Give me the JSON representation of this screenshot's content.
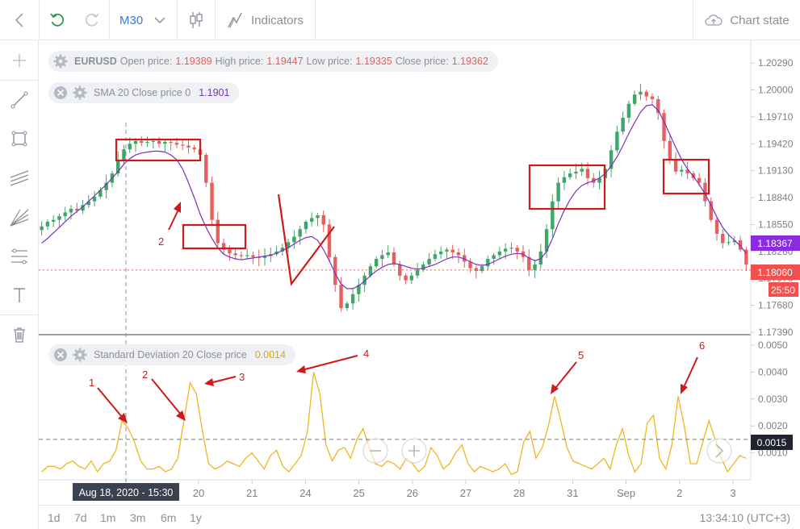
{
  "toolbar": {
    "timeframe": "M30",
    "indicators_label": "Indicators",
    "chart_state_label": "Chart state"
  },
  "legend_main": {
    "symbol": "EURUSD",
    "open_label": "Open price:",
    "open_value": "1.19389",
    "high_label": "High price:",
    "high_value": "1.19447",
    "low_label": "Low price:",
    "low_value": "1.19335",
    "close_label": "Close price:",
    "close_value": "1.19362"
  },
  "legend_sma": {
    "label": "SMA 20 Close price 0",
    "value": "1.1901"
  },
  "legend_sd": {
    "label": "Standard Deviation 20 Close price",
    "value": "0.0014"
  },
  "colors": {
    "candle_up": "#3fa66a",
    "candle_down": "#e3605f",
    "sma": "#7b2fbe",
    "stddev": "#f2b51f",
    "annotation": "#d0191b",
    "axis_text": "#7a7f88",
    "price_badge_sma": "#8a2be2",
    "price_badge_close": "#f05050"
  },
  "chart_data": [
    {
      "type": "candlestick",
      "series": [
        {
          "name": "EURUSD",
          "values": [
            1.1853,
            1.1858,
            1.186,
            1.1864,
            1.1868,
            1.1872,
            1.187,
            1.1876,
            1.188,
            1.1885,
            1.1892,
            1.19,
            1.191,
            1.1925,
            1.1936,
            1.1942,
            1.1945,
            1.1943,
            1.1944,
            1.1945,
            1.1942,
            1.1944,
            1.1943,
            1.1941,
            1.194,
            1.1938,
            1.1936,
            1.193,
            1.19,
            1.186,
            1.1835,
            1.1828,
            1.1824,
            1.1822,
            1.1821,
            1.1822,
            1.182,
            1.1819,
            1.1821,
            1.1823,
            1.1826,
            1.183,
            1.1836,
            1.1842,
            1.185,
            1.1858,
            1.1862,
            1.1865,
            1.1855,
            1.182,
            1.179,
            1.1765,
            1.177,
            1.178,
            1.179,
            1.18,
            1.181,
            1.1818,
            1.1822,
            1.1825,
            1.1812,
            1.18,
            1.1795,
            1.18,
            1.1806,
            1.1812,
            1.1818,
            1.1823,
            1.1826,
            1.1828,
            1.1825,
            1.1822,
            1.1815,
            1.1808,
            1.1805,
            1.181,
            1.1818,
            1.1822,
            1.1826,
            1.1829,
            1.183,
            1.1826,
            1.182,
            1.1806,
            1.1812,
            1.1826,
            1.185,
            1.188,
            1.19,
            1.1906,
            1.191,
            1.1912,
            1.1915,
            1.1905,
            1.19,
            1.1905,
            1.1915,
            1.1935,
            1.1955,
            1.197,
            1.1985,
            1.1995,
            1.1998,
            1.1993,
            1.199,
            1.1975,
            1.1945,
            1.1925,
            1.1912,
            1.1914,
            1.191,
            1.1905,
            1.19,
            1.188,
            1.186,
            1.1845,
            1.1835,
            1.1836,
            1.1838,
            1.1828,
            1.1812
          ]
        },
        {
          "name": "SMA 20",
          "values": [
            1.1835,
            1.184,
            1.1846,
            1.1852,
            1.1858,
            1.1864,
            1.1869,
            1.1874,
            1.188,
            1.1886,
            1.1892,
            1.1898,
            1.1905,
            1.1912,
            1.192,
            1.1926,
            1.193,
            1.1932,
            1.1933,
            1.1934,
            1.1934,
            1.1933,
            1.193,
            1.1925,
            1.1915,
            1.19,
            1.1884,
            1.1866,
            1.1852,
            1.184,
            1.183,
            1.1823,
            1.182,
            1.1818,
            1.1817,
            1.1818,
            1.1819,
            1.182,
            1.1821,
            1.1822,
            1.1824,
            1.1827,
            1.183,
            1.1834,
            1.1838,
            1.1841,
            1.1842,
            1.1838,
            1.1828,
            1.1816,
            1.1802,
            1.1791,
            1.1786,
            1.1786,
            1.1789,
            1.1794,
            1.18,
            1.1805,
            1.1809,
            1.1812,
            1.1813,
            1.1812,
            1.181,
            1.1808,
            1.1807,
            1.1808,
            1.181,
            1.1812,
            1.1815,
            1.1818,
            1.182,
            1.182,
            1.1818,
            1.1815,
            1.1812,
            1.1811,
            1.1812,
            1.1815,
            1.1818,
            1.1821,
            1.1823,
            1.1824,
            1.1823,
            1.1819,
            1.1816,
            1.1818,
            1.1826,
            1.184,
            1.1856,
            1.187,
            1.1882,
            1.1891,
            1.1897,
            1.19,
            1.1902,
            1.1905,
            1.191,
            1.1918,
            1.1928,
            1.194,
            1.1953,
            1.1965,
            1.1976,
            1.1983,
            1.1984,
            1.1978,
            1.1966,
            1.1952,
            1.1938,
            1.1925,
            1.1915,
            1.1907,
            1.1898,
            1.1888,
            1.1876,
            1.1863,
            1.1852,
            1.1844,
            1.1838,
            1.1832,
            1.1824
          ]
        }
      ],
      "y_ticks": [
        "1.20290",
        "1.20000",
        "1.19710",
        "1.19420",
        "1.19130",
        "1.18840",
        "1.18550",
        "1.18260",
        "1.17970",
        "1.17680",
        "1.17390"
      ],
      "ylim": [
        1.1739,
        1.2043
      ],
      "current_sma_label": "1.18367",
      "current_price_label": "1.18060",
      "countdown_label": "25:50",
      "annotation_labels": [
        {
          "text": "2"
        }
      ]
    },
    {
      "type": "line",
      "series": [
        {
          "name": "Standard Deviation 20",
          "values": [
            0.0003,
            0.0005,
            0.0005,
            0.0004,
            0.0006,
            0.0007,
            0.0005,
            0.0004,
            0.0007,
            0.0003,
            0.0006,
            0.0007,
            0.0011,
            0.0022,
            0.0019,
            0.0014,
            0.0007,
            0.0004,
            0.0004,
            0.0005,
            0.0003,
            0.0004,
            0.0008,
            0.0022,
            0.0036,
            0.0032,
            0.0018,
            0.0006,
            0.0004,
            0.0005,
            0.0007,
            0.0006,
            0.0005,
            0.0008,
            0.001,
            0.0007,
            0.0004,
            0.0009,
            0.0011,
            0.0005,
            0.0003,
            0.0006,
            0.0009,
            0.0018,
            0.004,
            0.0032,
            0.0013,
            0.0007,
            0.0011,
            0.0012,
            0.0008,
            0.0015,
            0.0019,
            0.0012,
            0.0006,
            0.0005,
            0.0007,
            0.0006,
            0.0004,
            0.0008,
            0.0006,
            0.0003,
            0.0005,
            0.0012,
            0.0009,
            0.0004,
            0.0006,
            0.001,
            0.0013,
            0.0006,
            0.0003,
            0.0005,
            0.0004,
            0.0003,
            0.0004,
            0.0006,
            0.0002,
            0.0003,
            0.0014,
            0.0018,
            0.0008,
            0.0012,
            0.002,
            0.0031,
            0.0022,
            0.0012,
            0.0007,
            0.0006,
            0.0005,
            0.0004,
            0.0006,
            0.0008,
            0.0004,
            0.0013,
            0.0019,
            0.0009,
            0.0003,
            0.0006,
            0.0021,
            0.0024,
            0.0008,
            0.0004,
            0.0013,
            0.0031,
            0.002,
            0.0006,
            0.0006,
            0.0014,
            0.0022,
            0.0015,
            0.0008,
            0.0003,
            0.0006,
            0.0009,
            0.0008
          ]
        }
      ],
      "y_ticks": [
        "0.0050",
        "0.0040",
        "0.0030",
        "0.0020",
        "0.0010"
      ],
      "current_value_label": "0.0015",
      "ylim": [
        0.0,
        0.0053
      ],
      "annotation_labels": [
        {
          "text": "1"
        },
        {
          "text": "2"
        },
        {
          "text": "3"
        },
        {
          "text": "4"
        },
        {
          "text": "5"
        },
        {
          "text": "6"
        }
      ]
    }
  ],
  "x_axis": {
    "labels": [
      "20",
      "21",
      "24",
      "25",
      "26",
      "27",
      "28",
      "31",
      "Sep",
      "2",
      "3"
    ],
    "crosshair_label": "Aug 18, 2020 - 15:30"
  },
  "bottom_bar": {
    "periods": [
      "1d",
      "7d",
      "1m",
      "3m",
      "6m",
      "1y"
    ],
    "clock": "13:34:10 (UTC+3)"
  }
}
